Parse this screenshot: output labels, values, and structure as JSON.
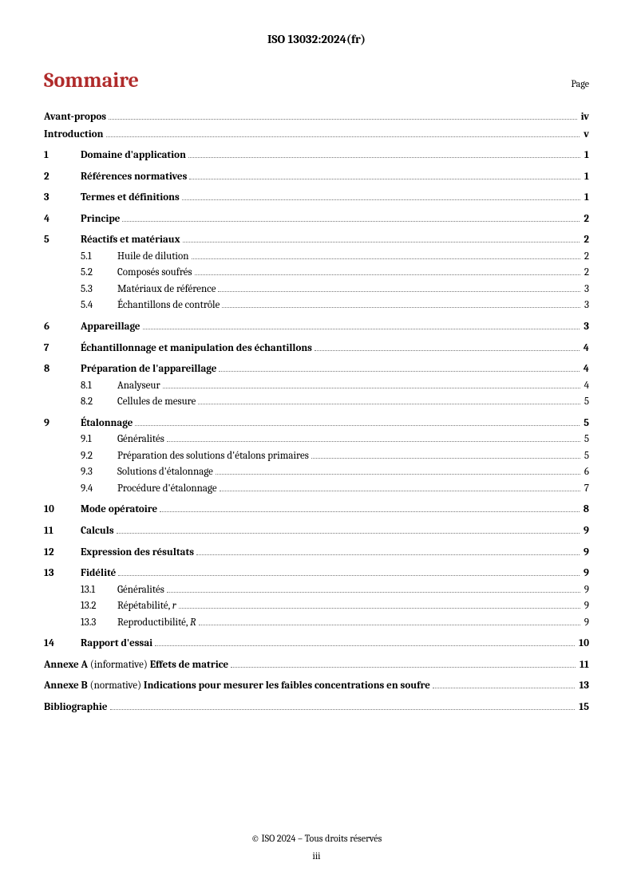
{
  "header": "ISO 13032:2024(fr)",
  "title": "Sommaire",
  "pageLabel": "Page",
  "front": [
    {
      "title": "Avant-propos",
      "page": "iv"
    },
    {
      "title": "Introduction",
      "page": "v"
    }
  ],
  "sections": [
    {
      "num": "1",
      "title": "Domaine d'application",
      "page": "1",
      "subs": []
    },
    {
      "num": "2",
      "title": "Références normatives",
      "page": "1",
      "subs": []
    },
    {
      "num": "3",
      "title": "Termes et définitions",
      "page": "1",
      "subs": []
    },
    {
      "num": "4",
      "title": "Principe",
      "page": "2",
      "subs": []
    },
    {
      "num": "5",
      "title": "Réactifs et matériaux",
      "page": "2",
      "subs": [
        {
          "num": "5.1",
          "title": "Huile de dilution",
          "page": "2"
        },
        {
          "num": "5.2",
          "title": "Composés soufrés",
          "page": "2"
        },
        {
          "num": "5.3",
          "title": "Matériaux de référence",
          "page": "3"
        },
        {
          "num": "5.4",
          "title": "Échantillons de contrôle",
          "page": "3"
        }
      ]
    },
    {
      "num": "6",
      "title": "Appareillage",
      "page": "3",
      "subs": []
    },
    {
      "num": "7",
      "title": "Échantillonnage et manipulation des échantillons",
      "page": "4",
      "subs": []
    },
    {
      "num": "8",
      "title": "Préparation de l'appareillage",
      "page": "4",
      "subs": [
        {
          "num": "8.1",
          "title": "Analyseur",
          "page": "4"
        },
        {
          "num": "8.2",
          "title": "Cellules de mesure",
          "page": "5"
        }
      ]
    },
    {
      "num": "9",
      "title": "Étalonnage",
      "page": "5",
      "subs": [
        {
          "num": "9.1",
          "title": "Généralités",
          "page": "5"
        },
        {
          "num": "9.2",
          "title": "Préparation des solutions d'étalons primaires",
          "page": "5"
        },
        {
          "num": "9.3",
          "title": "Solutions d'étalonnage",
          "page": "6"
        },
        {
          "num": "9.4",
          "title": "Procédure d'étalonnage",
          "page": "7"
        }
      ]
    },
    {
      "num": "10",
      "title": "Mode opératoire",
      "page": "8",
      "subs": []
    },
    {
      "num": "11",
      "title": "Calculs",
      "page": "9",
      "subs": []
    },
    {
      "num": "12",
      "title": "Expression des résultats",
      "page": "9",
      "subs": []
    },
    {
      "num": "13",
      "title": "Fidélité",
      "page": "9",
      "subs": [
        {
          "num": "13.1",
          "title": "Généralités",
          "page": "9"
        },
        {
          "num": "13.2",
          "title": "Répétabilité, ",
          "suffixItalic": "r",
          "page": "9"
        },
        {
          "num": "13.3",
          "title": "Reproductibilité, ",
          "suffixItalic": "R",
          "page": "9"
        }
      ]
    },
    {
      "num": "14",
      "title": "Rapport d'essai",
      "page": "10",
      "subs": []
    }
  ],
  "annexes": [
    {
      "label": "Annexe A",
      "type": "(informative)",
      "title": "Effets de matrice",
      "page": "11"
    },
    {
      "label": "Annexe B",
      "type": "(normative)",
      "title": "Indications pour mesurer les faibles concentrations en soufre",
      "page": "13"
    }
  ],
  "back": [
    {
      "title": "Bibliographie",
      "page": "15"
    }
  ],
  "footer": {
    "copyright": "© ISO 2024 – Tous droits réservés",
    "pageNumber": "iii"
  },
  "colors": {
    "accent": "#b02b2b",
    "text": "#000000",
    "background": "#ffffff"
  }
}
